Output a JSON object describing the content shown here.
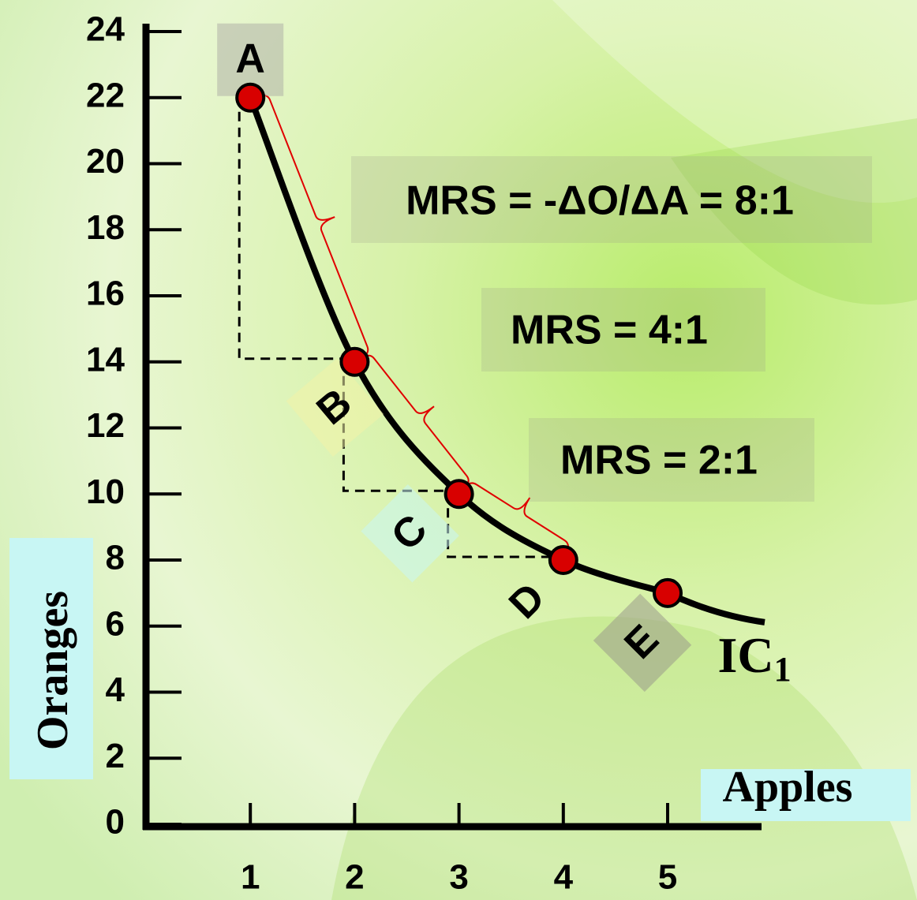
{
  "chart_data": {
    "type": "line",
    "x": [
      1,
      2,
      3,
      4,
      5
    ],
    "series": [
      {
        "name": "IC",
        "color": "#000000",
        "values": [
          22,
          14,
          10,
          8,
          7
        ]
      }
    ],
    "point_labels": [
      "A",
      "B",
      "C",
      "D",
      "E"
    ],
    "curve_label": {
      "text": "IC",
      "subscript": "1"
    },
    "marker_color": "#d80000",
    "x_label": "Apples",
    "y_label": "Oranges",
    "xlim": [
      0,
      5.9
    ],
    "ylim": [
      0,
      24
    ],
    "xticks": [
      1,
      2,
      3,
      4,
      5
    ],
    "yticks": [
      0,
      2,
      4,
      6,
      8,
      10,
      12,
      14,
      16,
      18,
      20,
      22,
      24
    ],
    "annotations": [
      "MRS = -ΔO/ΔA = 8:1",
      "MRS = 4:1",
      "MRS = 2:1"
    ]
  }
}
